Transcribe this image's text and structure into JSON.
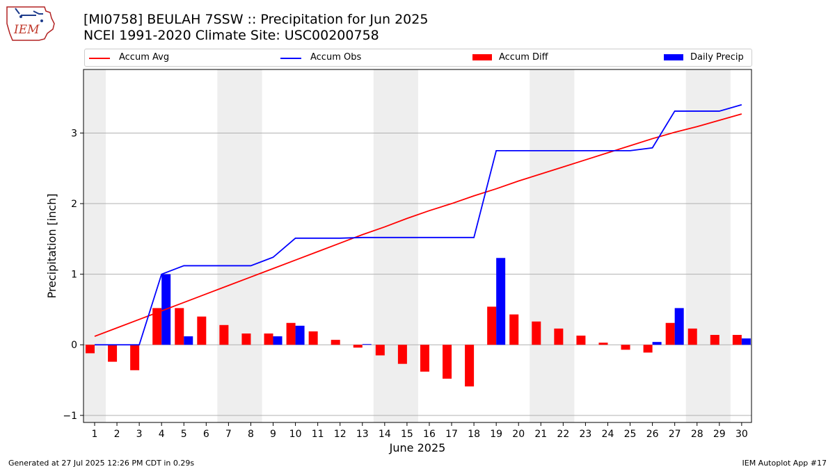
{
  "header": {
    "title_line1": "[MI0758] BEULAH 7SSW :: Precipitation for Jun 2025",
    "title_line2": "NCEI 1991-2020 Climate Site: USC00200758",
    "logo_text": "IEM"
  },
  "footer": {
    "left": "Generated at 27 Jul 2025 12:26 PM CDT in 0.29s",
    "right": "IEM Autoplot App #17"
  },
  "colors": {
    "accum_avg": "#ff0000",
    "accum_obs": "#0000ff",
    "accum_diff": "#ff0000",
    "daily_precip": "#0000ff",
    "weekend_shade": "#eeeeee",
    "grid": "#b0b0b0"
  },
  "legend": {
    "placement": "top, above plot",
    "items": [
      {
        "label": "Accum Avg",
        "kind": "line",
        "color": "#ff0000"
      },
      {
        "label": "Accum Obs",
        "kind": "line",
        "color": "#0000ff"
      },
      {
        "label": "Accum Diff",
        "kind": "bar",
        "color": "#ff0000"
      },
      {
        "label": "Daily Precip",
        "kind": "bar",
        "color": "#0000ff"
      }
    ]
  },
  "chart_data": {
    "type": "bar",
    "title": "[MI0758] BEULAH 7SSW :: Precipitation for Jun 2025",
    "subtitle": "NCEI 1991-2020 Climate Site: USC00200758",
    "xlabel": "June 2025",
    "ylabel": "Precipitation [inch]",
    "ylim": [
      -1.1,
      3.9
    ],
    "yticks": [
      -1,
      0,
      1,
      2,
      3
    ],
    "grid": "horizontal",
    "categories": [
      "1",
      "2",
      "3",
      "4",
      "5",
      "6",
      "7",
      "8",
      "9",
      "10",
      "11",
      "12",
      "13",
      "14",
      "15",
      "16",
      "17",
      "18",
      "19",
      "20",
      "21",
      "22",
      "23",
      "24",
      "25",
      "26",
      "27",
      "28",
      "29",
      "30"
    ],
    "shaded_days": [
      [
        1,
        1
      ],
      [
        7,
        8
      ],
      [
        14,
        15
      ],
      [
        21,
        22
      ],
      [
        28,
        29
      ]
    ],
    "series": [
      {
        "name": "Accum Avg",
        "kind": "line",
        "values": [
          0.12,
          0.24,
          0.36,
          0.48,
          0.6,
          0.72,
          0.84,
          0.96,
          1.08,
          1.2,
          1.32,
          1.44,
          1.56,
          1.67,
          1.79,
          1.9,
          2.0,
          2.11,
          2.21,
          2.32,
          2.42,
          2.52,
          2.62,
          2.72,
          2.82,
          2.92,
          3.01,
          3.09,
          3.18,
          3.27
        ]
      },
      {
        "name": "Accum Obs",
        "kind": "line",
        "values": [
          0,
          0,
          0,
          1.0,
          1.12,
          1.12,
          1.12,
          1.12,
          1.24,
          1.51,
          1.51,
          1.51,
          1.52,
          1.52,
          1.52,
          1.52,
          1.52,
          1.52,
          2.75,
          2.75,
          2.75,
          2.75,
          2.75,
          2.75,
          2.75,
          2.79,
          3.31,
          3.31,
          3.31,
          3.4
        ]
      },
      {
        "name": "Accum Diff",
        "kind": "bar",
        "values": [
          -0.12,
          -0.24,
          -0.36,
          0.52,
          0.52,
          0.4,
          0.28,
          0.16,
          0.16,
          0.31,
          0.19,
          0.07,
          -0.04,
          -0.15,
          -0.27,
          -0.38,
          -0.48,
          -0.59,
          0.54,
          0.43,
          0.33,
          0.23,
          0.13,
          0.03,
          -0.07,
          -0.11,
          0.31,
          0.23,
          0.14,
          0.14
        ]
      },
      {
        "name": "Daily Precip",
        "kind": "bar",
        "values": [
          0,
          0,
          0,
          1.0,
          0.12,
          0,
          0,
          0,
          0.12,
          0.27,
          0,
          0,
          0.01,
          0,
          0,
          0,
          0,
          0,
          1.23,
          0,
          0,
          0,
          0,
          0,
          0,
          0.04,
          0.52,
          0,
          0,
          0.09
        ]
      }
    ]
  }
}
